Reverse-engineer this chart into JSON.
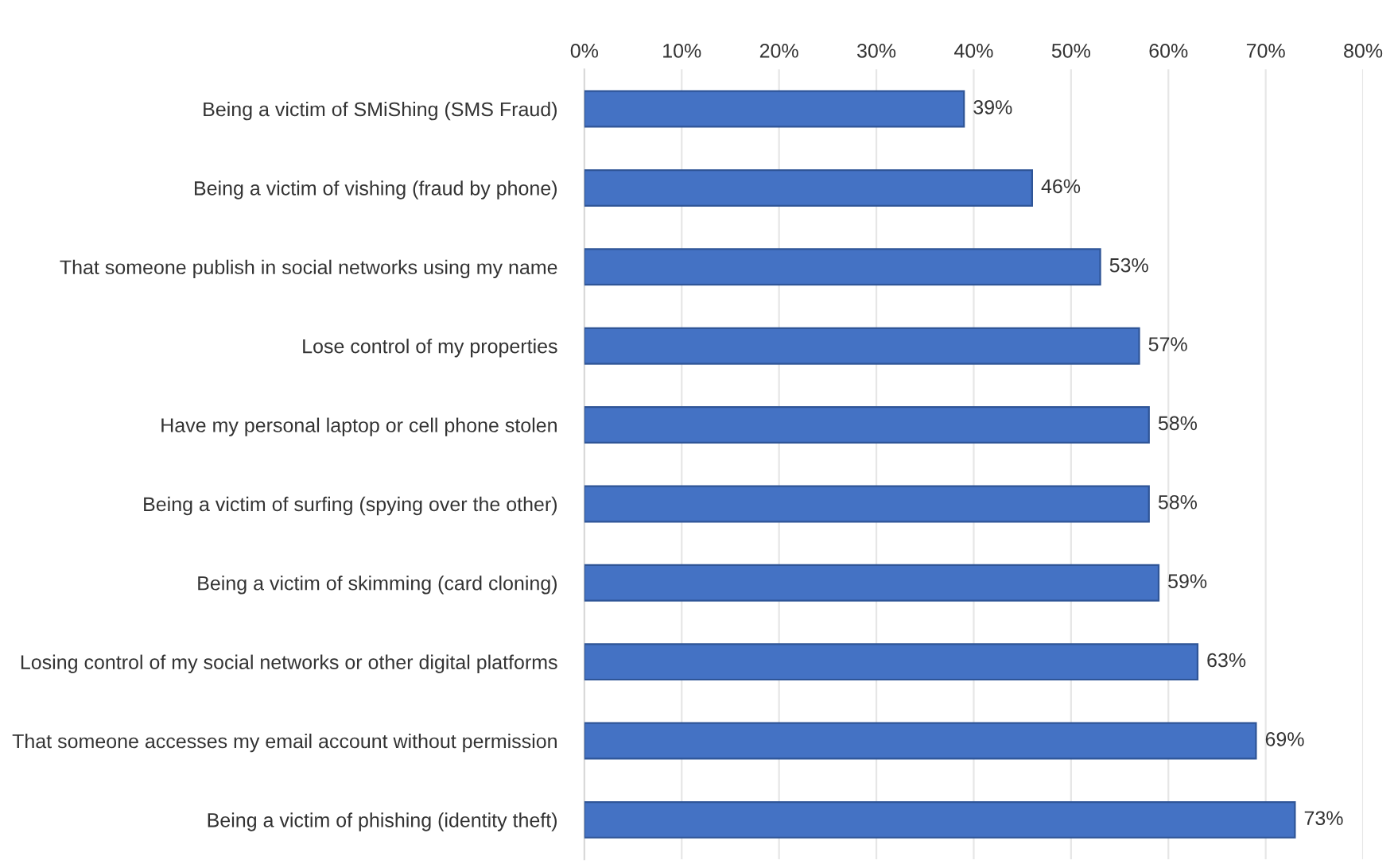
{
  "chart_data": {
    "type": "bar",
    "orientation": "horizontal",
    "categories": [
      "Being a victim of SMiShing (SMS Fraud)",
      "Being a victim of vishing (fraud by phone)",
      "That someone publish in social networks using my name",
      "Lose control of my properties",
      "Have my personal laptop or cell phone stolen",
      "Being a victim of surfing (spying over the other)",
      "Being a victim of skimming (card cloning)",
      "Losing control of my social networks or other digital platforms",
      "That someone accesses my email account without permission",
      "Being a victim of phishing (identity theft)"
    ],
    "values": [
      39,
      46,
      53,
      57,
      58,
      58,
      59,
      63,
      69,
      73
    ],
    "value_labels": [
      "39%",
      "46%",
      "53%",
      "57%",
      "58%",
      "58%",
      "59%",
      "63%",
      "69%",
      "73%"
    ],
    "color": "#4472c4",
    "xlim": [
      0,
      80
    ],
    "xticks": [
      {
        "value": 0,
        "label": "0%"
      },
      {
        "value": 10,
        "label": "10%"
      },
      {
        "value": 20,
        "label": "20%"
      },
      {
        "value": 30,
        "label": "30%"
      },
      {
        "value": 40,
        "label": "40%"
      },
      {
        "value": 50,
        "label": "50%"
      },
      {
        "value": 60,
        "label": "60%"
      },
      {
        "value": 70,
        "label": "70%"
      },
      {
        "value": 80,
        "label": "80%"
      }
    ],
    "grid": "x"
  }
}
